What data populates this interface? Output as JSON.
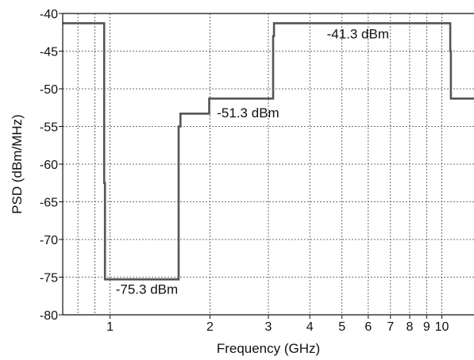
{
  "chart_data": {
    "type": "line",
    "title": "",
    "xlabel": "Frequency (GHz)",
    "ylabel": "PSD (dBm/MHz)",
    "xscale": "log",
    "xlim": [
      0.72,
      12.5
    ],
    "ylim": [
      -80,
      -40
    ],
    "grid": true,
    "x_ticks": [
      {
        "value": 1,
        "label": "1"
      },
      {
        "value": 2,
        "label": "2"
      },
      {
        "value": 3,
        "label": "3"
      },
      {
        "value": 4,
        "label": "4"
      },
      {
        "value": 5,
        "label": "5"
      },
      {
        "value": 6,
        "label": "6"
      },
      {
        "value": 7,
        "label": "7"
      },
      {
        "value": 8,
        "label": "8"
      },
      {
        "value": 9,
        "label": "9"
      },
      {
        "value": 10,
        "label": "10"
      }
    ],
    "x_minor_grid": [
      0.8,
      0.9
    ],
    "y_ticks": [
      {
        "value": -40,
        "label": "-40"
      },
      {
        "value": -45,
        "label": "-45"
      },
      {
        "value": -50,
        "label": "-50"
      },
      {
        "value": -55,
        "label": "-55"
      },
      {
        "value": -60,
        "label": "-60"
      },
      {
        "value": -65,
        "label": "-65"
      },
      {
        "value": -70,
        "label": "-70"
      },
      {
        "value": -75,
        "label": "-75"
      },
      {
        "value": -80,
        "label": "-80"
      }
    ],
    "series": [
      {
        "color": "#555555",
        "x": [
          0.72,
          0.96,
          0.96,
          0.965,
          0.965,
          0.99,
          0.99,
          1.61,
          1.61,
          1.63,
          1.63,
          1.99,
          1.99,
          3.1,
          3.1,
          3.12,
          3.12,
          10.6,
          10.6,
          10.65,
          10.65,
          12.5
        ],
        "y": [
          -41.3,
          -41.3,
          -62.5,
          -62.5,
          -75.3,
          -75.3,
          -75.3,
          -75.3,
          -55.0,
          -55.0,
          -53.3,
          -53.3,
          -51.3,
          -51.3,
          -43.0,
          -43.0,
          -41.3,
          -41.3,
          -45.0,
          -45.0,
          -51.3,
          -51.3
        ]
      }
    ],
    "annotations": [
      {
        "text": "-75.3 dBm",
        "x": 1.04,
        "y": -77.2
      },
      {
        "text": "-51.3 dBm",
        "x": 2.1,
        "y": -53.8
      },
      {
        "text": "-41.3 dBm",
        "x": 4.5,
        "y": -43.3
      }
    ]
  }
}
